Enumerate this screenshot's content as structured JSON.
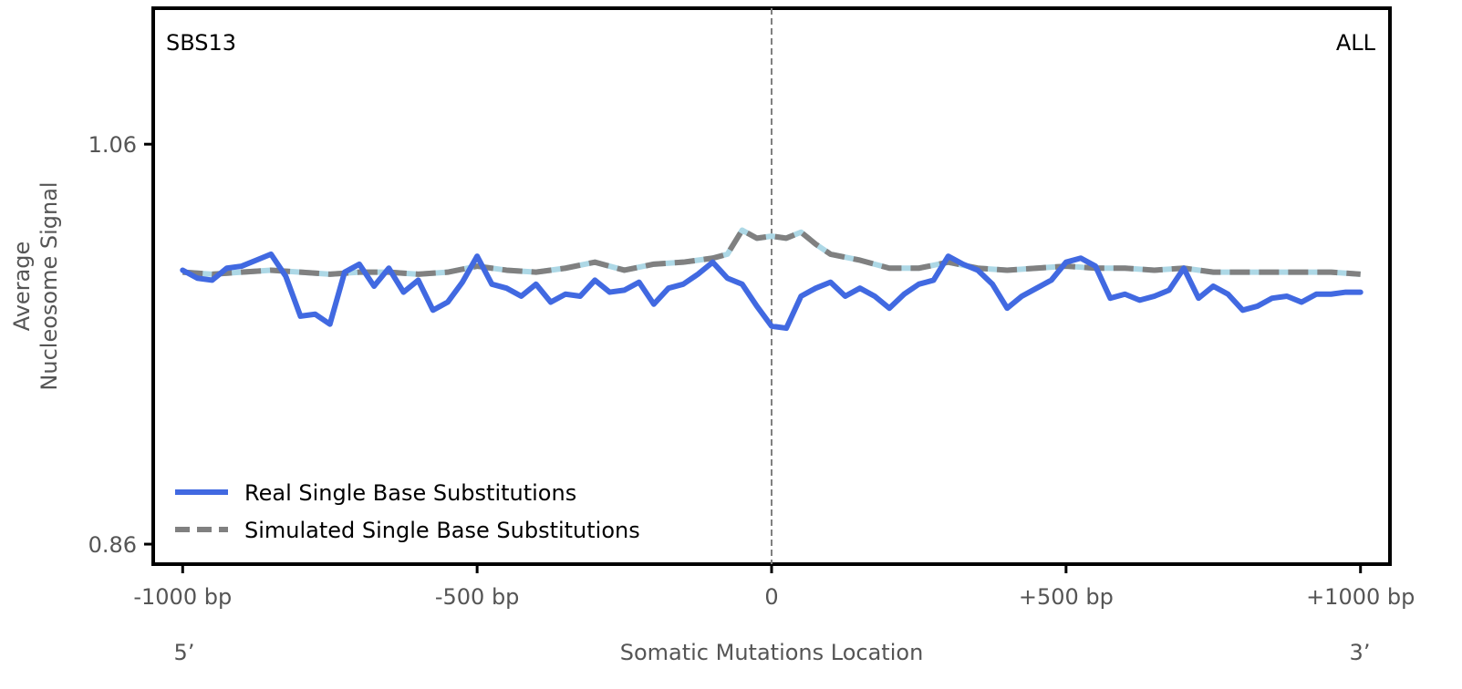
{
  "chart_data": {
    "type": "line",
    "signature_label": "SBS13",
    "subset_label": "ALL",
    "ylabel_line1": "Average",
    "ylabel_line2": "Nucleosome Signal",
    "xlabel": "Somatic Mutations Location",
    "five_prime_label": "5’",
    "three_prime_label": "3’",
    "xlim": [
      -1050,
      1050
    ],
    "ylim": [
      0.85,
      1.128
    ],
    "x_ticks": [
      -1000,
      -500,
      0,
      500,
      1000
    ],
    "x_tick_labels": [
      "-1000 bp",
      "-500 bp",
      "0",
      "+500 bp",
      "+1000 bp"
    ],
    "y_ticks": [
      0.86,
      1.06
    ],
    "y_tick_labels": [
      "0.86",
      "1.06"
    ],
    "center_line_x": 0,
    "legend_position": "lower-left",
    "colors": {
      "real": "#4169E1",
      "simulated": "#808080",
      "simulated_highlight": "#ADD8E6",
      "center_line": "#808080",
      "frame": "#000000"
    },
    "series": [
      {
        "name": "Real Single Base Substitutions",
        "style": "solid",
        "x": [
          -1000,
          -975,
          -950,
          -925,
          -900,
          -875,
          -850,
          -825,
          -800,
          -775,
          -750,
          -725,
          -700,
          -675,
          -650,
          -625,
          -600,
          -575,
          -550,
          -525,
          -500,
          -475,
          -450,
          -425,
          -400,
          -375,
          -350,
          -325,
          -300,
          -275,
          -250,
          -225,
          -200,
          -175,
          -150,
          -125,
          -100,
          -75,
          -50,
          -25,
          0,
          25,
          50,
          75,
          100,
          125,
          150,
          175,
          200,
          225,
          250,
          275,
          300,
          325,
          350,
          375,
          400,
          425,
          450,
          475,
          500,
          525,
          550,
          575,
          600,
          625,
          650,
          675,
          700,
          725,
          750,
          775,
          800,
          825,
          850,
          875,
          900,
          925,
          950,
          975,
          1000
        ],
        "values": [
          0.997,
          0.993,
          0.992,
          0.998,
          0.999,
          1.002,
          1.005,
          0.994,
          0.974,
          0.975,
          0.97,
          0.996,
          1.0,
          0.989,
          0.998,
          0.986,
          0.992,
          0.977,
          0.981,
          0.991,
          1.004,
          0.99,
          0.988,
          0.984,
          0.99,
          0.981,
          0.985,
          0.984,
          0.992,
          0.986,
          0.987,
          0.991,
          0.98,
          0.988,
          0.99,
          0.995,
          1.001,
          0.993,
          0.99,
          0.979,
          0.969,
          0.968,
          0.984,
          0.988,
          0.991,
          0.984,
          0.988,
          0.984,
          0.978,
          0.985,
          0.99,
          0.992,
          1.004,
          1.0,
          0.997,
          0.99,
          0.978,
          0.984,
          0.988,
          0.992,
          1.001,
          1.003,
          0.999,
          0.983,
          0.985,
          0.982,
          0.984,
          0.987,
          0.998,
          0.983,
          0.989,
          0.985,
          0.977,
          0.979,
          0.983,
          0.984,
          0.981,
          0.985,
          0.985,
          0.986,
          0.986
        ]
      },
      {
        "name": "Simulated Single Base Substitutions",
        "style": "dashed",
        "x": [
          -1000,
          -950,
          -900,
          -850,
          -800,
          -750,
          -700,
          -650,
          -600,
          -550,
          -500,
          -450,
          -400,
          -350,
          -300,
          -250,
          -200,
          -150,
          -100,
          -75,
          -50,
          -25,
          0,
          25,
          50,
          75,
          100,
          150,
          200,
          250,
          300,
          350,
          400,
          450,
          500,
          550,
          600,
          650,
          700,
          750,
          800,
          850,
          900,
          950,
          1000
        ],
        "values": [
          0.996,
          0.995,
          0.996,
          0.997,
          0.996,
          0.995,
          0.996,
          0.996,
          0.995,
          0.996,
          0.999,
          0.997,
          0.996,
          0.998,
          1.001,
          0.997,
          1.0,
          1.001,
          1.003,
          1.005,
          1.017,
          1.013,
          1.014,
          1.013,
          1.016,
          1.01,
          1.005,
          1.002,
          0.998,
          0.998,
          1.001,
          0.998,
          0.997,
          0.998,
          0.999,
          0.998,
          0.998,
          0.997,
          0.998,
          0.996,
          0.996,
          0.996,
          0.996,
          0.996,
          0.995
        ]
      }
    ]
  }
}
